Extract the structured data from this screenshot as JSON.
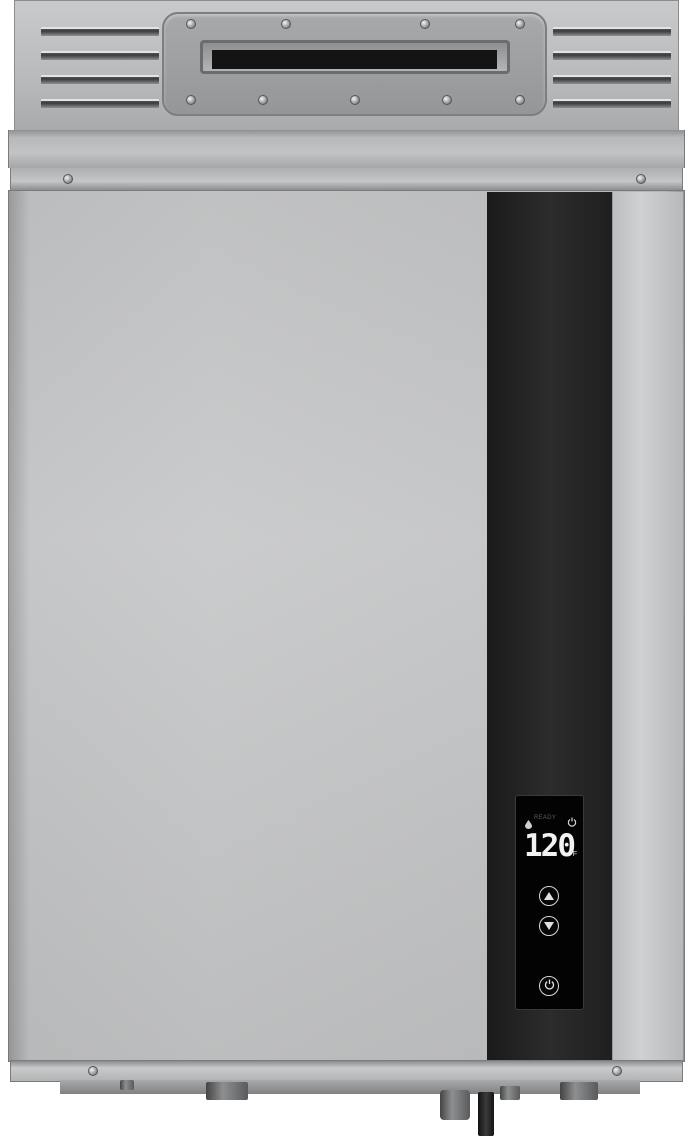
{
  "product": {
    "type": "tankless-water-heater",
    "panel_color": "#c6c7c8",
    "strip_color": "#232323"
  },
  "control_panel": {
    "status_label": "READY",
    "temperature": "120",
    "unit": "°F",
    "icons": {
      "water": "water-drop-icon",
      "power_indicator": "power-icon",
      "up": "triangle-up-icon",
      "down": "triangle-down-icon",
      "power": "power-icon"
    }
  }
}
